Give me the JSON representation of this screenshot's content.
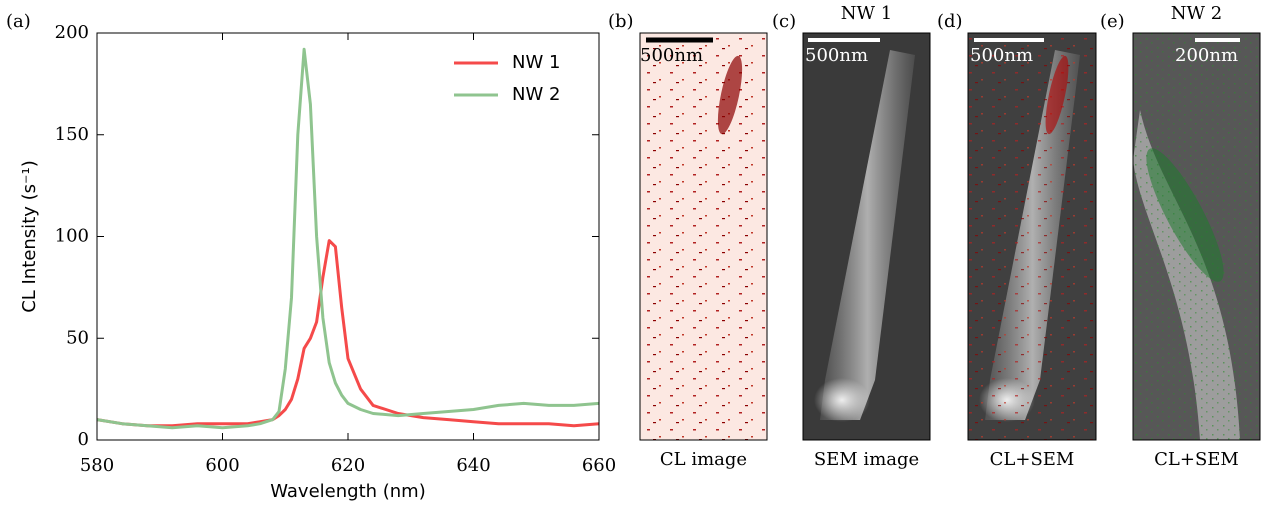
{
  "chart_data": {
    "type": "line",
    "label": "(a)",
    "xlabel": "Wavelength (nm)",
    "ylabel": "CL Intensity (s⁻¹)",
    "x": [
      580,
      584,
      588,
      592,
      596,
      600,
      604,
      606,
      608,
      609,
      610,
      611,
      612,
      613,
      614,
      615,
      616,
      617,
      618,
      619,
      620,
      622,
      624,
      628,
      632,
      636,
      640,
      644,
      648,
      652,
      656,
      660
    ],
    "series": [
      {
        "name": "NW 1",
        "color": "#f54a4a",
        "values": [
          10,
          8,
          7,
          7,
          8,
          8,
          8,
          9,
          10,
          12,
          15,
          20,
          30,
          45,
          50,
          58,
          80,
          98,
          95,
          65,
          40,
          25,
          17,
          13,
          11,
          10,
          9,
          8,
          8,
          8,
          7,
          8
        ]
      },
      {
        "name": "NW 2",
        "color": "#8fc48f",
        "values": [
          10,
          8,
          7,
          6,
          7,
          6,
          7,
          8,
          10,
          14,
          35,
          70,
          150,
          192,
          165,
          100,
          60,
          38,
          28,
          22,
          18,
          15,
          13,
          12,
          13,
          14,
          15,
          17,
          18,
          17,
          17,
          18
        ]
      }
    ],
    "xlim": [
      580,
      660
    ],
    "xticks": [
      580,
      600,
      620,
      640,
      660
    ],
    "ylim": [
      0,
      200
    ],
    "yticks": [
      0,
      50,
      100,
      150,
      200
    ],
    "legend": "upper right"
  },
  "panels": [
    {
      "label": "(b)",
      "scale_bar": "500nm",
      "caption": "CL image"
    },
    {
      "label": "(c)",
      "title": "NW 1",
      "scale_bar": "500nm",
      "caption": "SEM image"
    },
    {
      "label": "(d)",
      "scale_bar": "500nm",
      "caption": "CL+SEM"
    },
    {
      "label": "(e)",
      "title": "NW 2",
      "scale_bar": "200nm",
      "caption": "CL+SEM"
    }
  ]
}
